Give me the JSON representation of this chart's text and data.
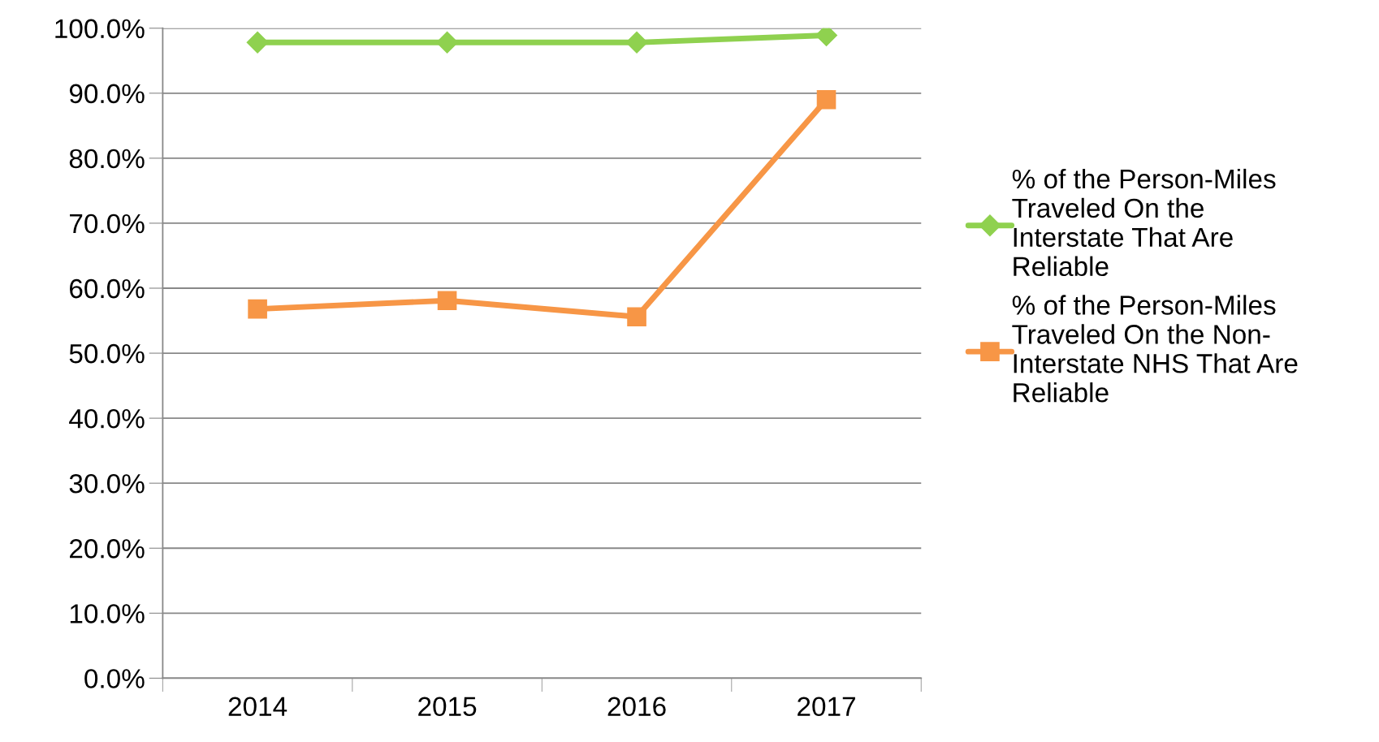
{
  "chart_data": {
    "type": "line",
    "categories": [
      "2014",
      "2015",
      "2016",
      "2017"
    ],
    "series": [
      {
        "name": "% of the Person-Miles\nTraveled On the\nInterstate That Are\nReliable",
        "color": "#8fd14f",
        "marker": "diamond",
        "values": [
          97.8,
          97.8,
          97.8,
          98.9
        ]
      },
      {
        "name": "% of the Person-Miles\nTraveled On the Non-\nInterstate NHS That Are\nReliable",
        "color": "#f79646",
        "marker": "square",
        "values": [
          56.8,
          58.1,
          55.6,
          89.0
        ]
      }
    ],
    "ylim": [
      0,
      100
    ],
    "yticks": [
      {
        "value": 0,
        "label": "0.0%"
      },
      {
        "value": 10,
        "label": "10.0%"
      },
      {
        "value": 20,
        "label": "20.0%"
      },
      {
        "value": 30,
        "label": "30.0%"
      },
      {
        "value": 40,
        "label": "40.0%"
      },
      {
        "value": 50,
        "label": "50.0%"
      },
      {
        "value": 60,
        "label": "60.0%"
      },
      {
        "value": 70,
        "label": "70.0%"
      },
      {
        "value": 80,
        "label": "80.0%"
      },
      {
        "value": 90,
        "label": "90.0%"
      },
      {
        "value": 100,
        "label": "100.0%"
      }
    ],
    "grid": "y",
    "legend": "right",
    "line_style": "solid"
  }
}
